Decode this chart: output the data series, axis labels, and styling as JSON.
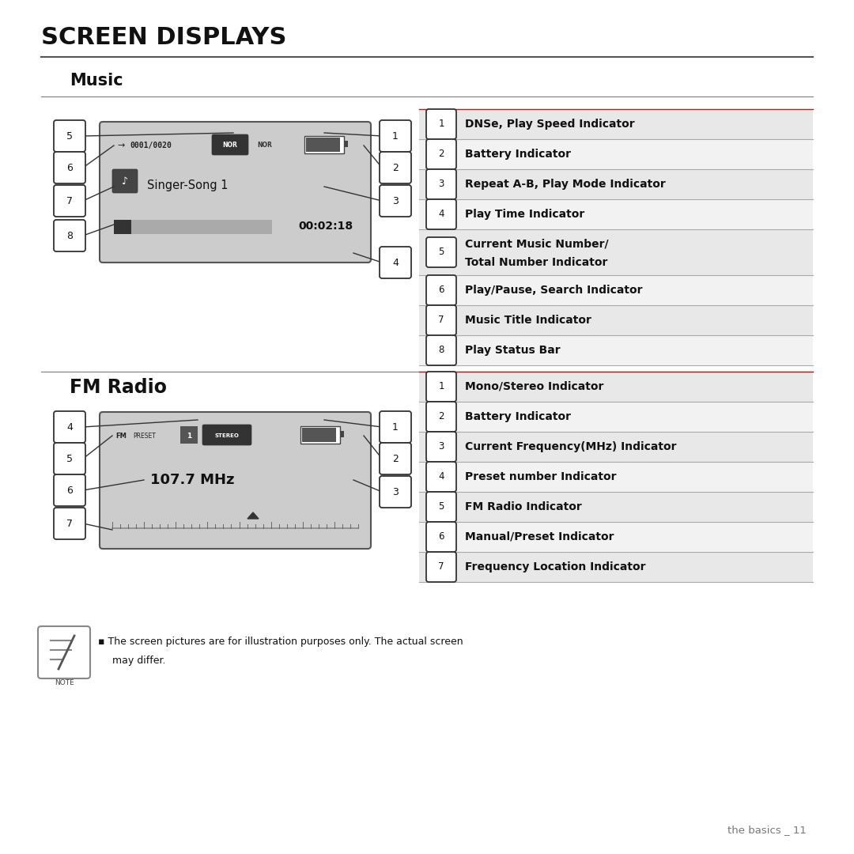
{
  "title": "SCREEN DISPLAYS",
  "section_music": "Music",
  "section_fm": "FM Radio",
  "music_items": [
    [
      "1",
      "DNSe, Play Speed Indicator"
    ],
    [
      "2",
      "Battery Indicator"
    ],
    [
      "3",
      "Repeat A-B, Play Mode Indicator"
    ],
    [
      "4",
      "Play Time Indicator"
    ],
    [
      "5",
      "Current Music Number/",
      "Total Number Indicator"
    ],
    [
      "6",
      "Play/Pause, Search Indicator"
    ],
    [
      "7",
      "Music Title Indicator"
    ],
    [
      "8",
      "Play Status Bar"
    ]
  ],
  "fm_items": [
    [
      "1",
      "Mono/Stereo Indicator"
    ],
    [
      "2",
      "Battery Indicator"
    ],
    [
      "3",
      "Current Frequency(MHz) Indicator"
    ],
    [
      "4",
      "Preset number Indicator"
    ],
    [
      "5",
      "FM Radio Indicator"
    ],
    [
      "6",
      "Manual/Preset Indicator"
    ],
    [
      "7",
      "Frequency Location Indicator"
    ]
  ],
  "note_text_1": "The screen pictures are for illustration purposes only. The actual screen",
  "note_text_2": "may differ.",
  "footer_text": "the basics _ 11",
  "bg_color": "#ffffff",
  "screen_bg": "#cccccc",
  "screen_border": "#555555",
  "badge_bg": "#ffffff",
  "badge_border": "#333333",
  "text_color": "#111111",
  "line_color": "#333333",
  "divider_color": "#aaaaaa",
  "red_line_color": "#aa2222",
  "table_bg_even": "#e8e8e8",
  "table_bg_odd": "#f2f2f2"
}
